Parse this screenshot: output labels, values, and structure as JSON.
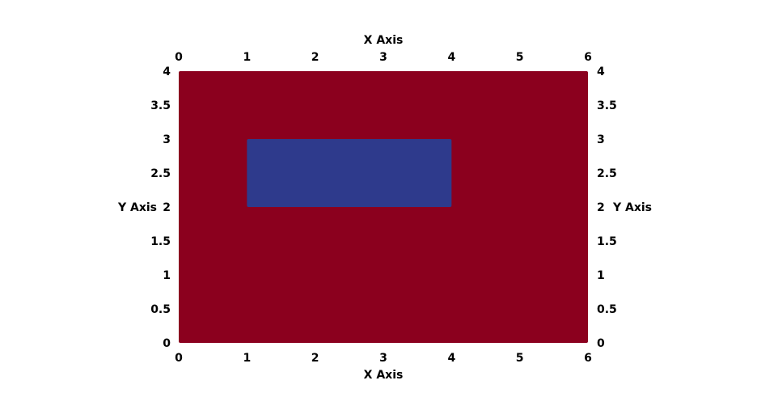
{
  "chart_data": {
    "type": "heatmap",
    "title": "",
    "xlabel": "X Axis",
    "ylabel": "Y Axis",
    "xlim": [
      0,
      6
    ],
    "ylim": [
      0,
      4
    ],
    "x_ticks": [
      "0",
      "1",
      "2",
      "3",
      "4",
      "5",
      "6"
    ],
    "y_ticks": [
      "0",
      "0.5",
      "1",
      "1.5",
      "2",
      "2.5",
      "3",
      "3.5",
      "4"
    ],
    "axes_on_all_sides": true,
    "grid": false,
    "legend": "none",
    "regions": [
      {
        "x": [
          0,
          6
        ],
        "y": [
          0,
          4
        ],
        "color": "#8b001e"
      },
      {
        "x": [
          1,
          4
        ],
        "y": [
          2,
          3
        ],
        "color": "#2e3a8c"
      }
    ]
  },
  "background_color": "#ffffff"
}
